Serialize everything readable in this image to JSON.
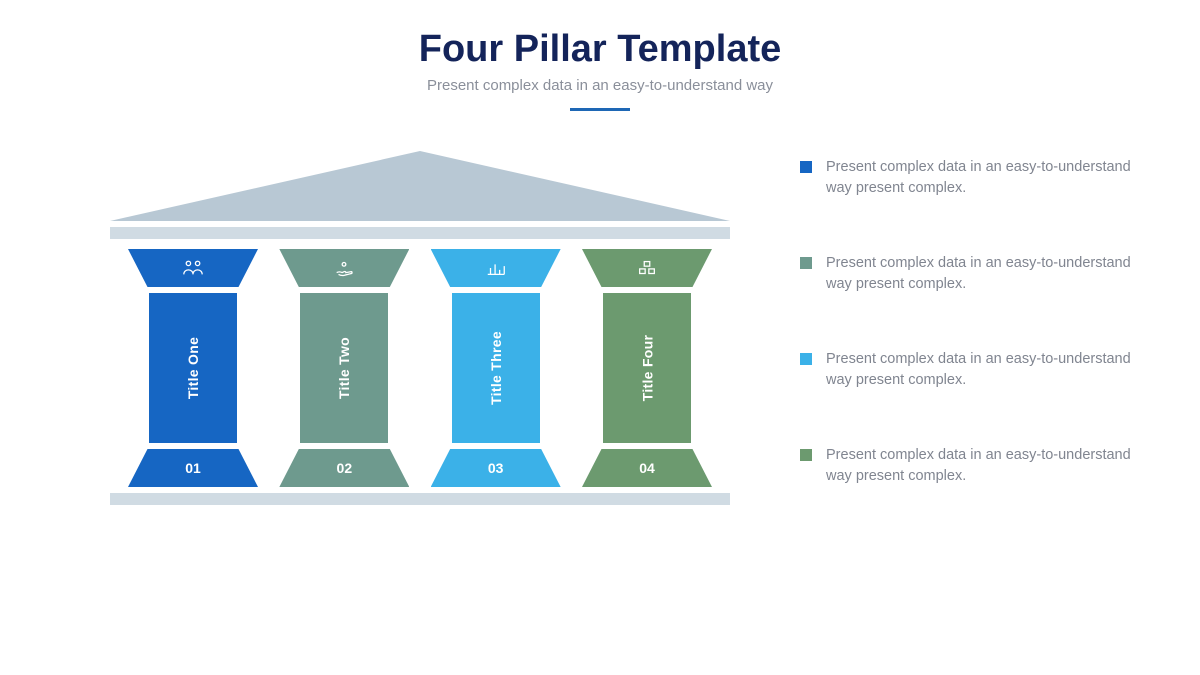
{
  "header": {
    "title": "Four Pillar Template",
    "subtitle": "Present complex data in an easy-to-understand way",
    "title_color": "#14245a",
    "subtitle_color": "#8a8f9a",
    "divider_color": "#1e67b5"
  },
  "building": {
    "roof_color": "#b8c8d4",
    "beam_color": "#d0dbe3"
  },
  "pillars": [
    {
      "title": "Title One",
      "number": "01",
      "color": "#1666c3",
      "icon": "people-icon"
    },
    {
      "title": "Title Two",
      "number": "02",
      "color": "#6e9a8e",
      "icon": "hand-icon"
    },
    {
      "title": "Title Three",
      "number": "03",
      "color": "#3bb1e8",
      "icon": "chart-icon"
    },
    {
      "title": "Title Four",
      "number": "04",
      "color": "#6c9a6f",
      "icon": "boxes-icon"
    }
  ],
  "legend": [
    {
      "text": "Present complex data in an easy-to-understand way present complex.",
      "color": "#1666c3"
    },
    {
      "text": "Present complex data in an easy-to-understand way present complex.",
      "color": "#6e9a8e"
    },
    {
      "text": "Present complex data in an easy-to-understand way present complex.",
      "color": "#3bb1e8"
    },
    {
      "text": "Present complex data in an easy-to-understand way present complex.",
      "color": "#6c9a6f"
    }
  ]
}
